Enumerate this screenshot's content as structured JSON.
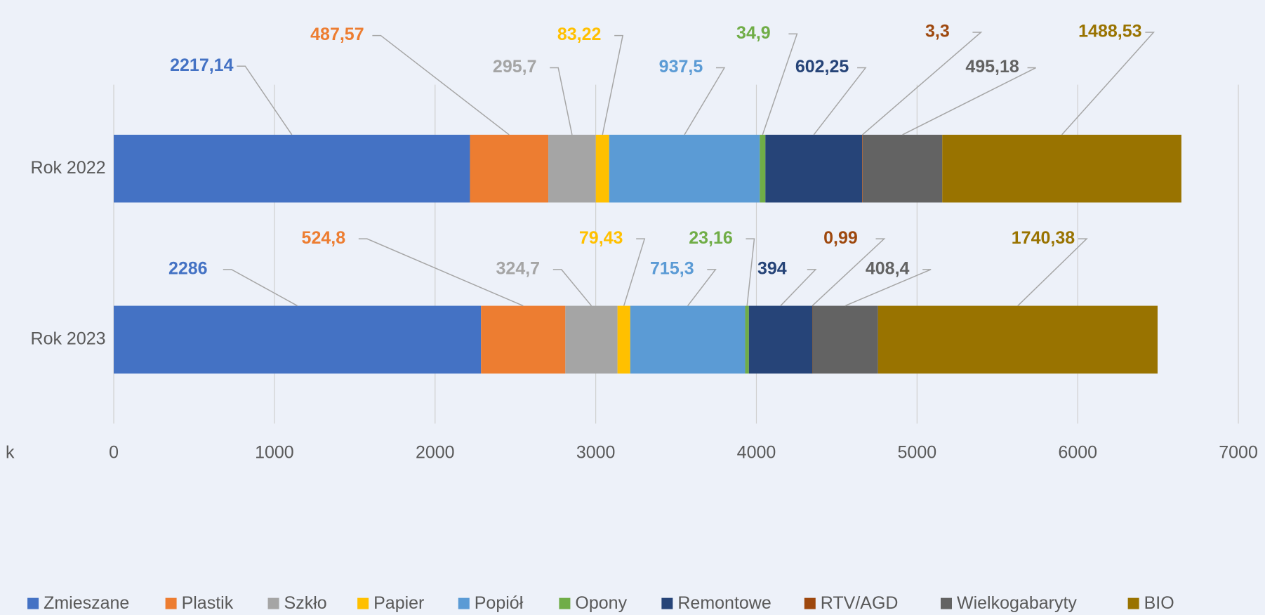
{
  "chart_data": {
    "type": "stacked_bar_horizontal",
    "x_axis_label": "k",
    "categories": [
      "Rok 2022",
      "Rok 2023"
    ],
    "xlim": [
      0,
      7000
    ],
    "xticks": [
      0,
      1000,
      2000,
      3000,
      4000,
      5000,
      6000,
      7000
    ],
    "grid": true,
    "legend": "bottom",
    "series": [
      {
        "name": "Zmieszane",
        "color": "#4472c4",
        "values": [
          2217.14,
          2286
        ],
        "value_labels": [
          "2217,14",
          "2286"
        ]
      },
      {
        "name": "Plastik",
        "color": "#ed7d31",
        "values": [
          487.57,
          524.8
        ],
        "value_labels": [
          "487,57",
          "524,8"
        ]
      },
      {
        "name": "Szkło",
        "color": "#a5a5a5",
        "values": [
          295.7,
          324.7
        ],
        "value_labels": [
          "295,7",
          "324,7"
        ]
      },
      {
        "name": "Papier",
        "color": "#ffc000",
        "values": [
          83.22,
          79.43
        ],
        "value_labels": [
          "83,22",
          "79,43"
        ]
      },
      {
        "name": "Popiół",
        "color": "#5b9bd5",
        "values": [
          937.5,
          715.3
        ],
        "value_labels": [
          "937,5",
          "715,3"
        ]
      },
      {
        "name": "Opony",
        "color": "#70ad47",
        "values": [
          34.9,
          23.16
        ],
        "value_labels": [
          "34,9",
          "23,16"
        ]
      },
      {
        "name": "Remontowe",
        "color": "#264478",
        "values": [
          602.25,
          394
        ],
        "value_labels": [
          "602,25",
          "394"
        ]
      },
      {
        "name": "RTV/AGD",
        "color": "#9e480e",
        "values": [
          3.3,
          0.99
        ],
        "value_labels": [
          "3,3",
          "0,99"
        ]
      },
      {
        "name": "Wielkogabaryty",
        "color": "#636363",
        "values": [
          495.18,
          408.4
        ],
        "value_labels": [
          "495,18",
          "408,4"
        ]
      },
      {
        "name": "BIO",
        "color": "#997300",
        "values": [
          1488.53,
          1740.38
        ],
        "value_labels": [
          "1488,53",
          "1740,38"
        ]
      }
    ]
  }
}
